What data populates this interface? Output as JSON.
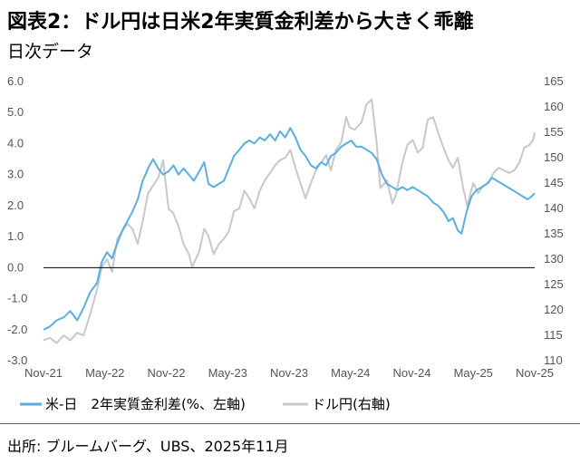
{
  "title": "図表2：ドル円は日米2年実質金利差から大きく乖離",
  "subtitle": "日次データ",
  "source": "出所: ブルームバーグ、UBS、2025年11月",
  "colors": {
    "spread": "#5aaee0",
    "usdjpy": "#c8c8c8",
    "zero_line": "#000000"
  },
  "chart_data": {
    "type": "line",
    "x_tick_labels": [
      "Nov-21",
      "May-22",
      "Nov-22",
      "May-23",
      "Nov-23",
      "May-24",
      "Nov-24",
      "May-25",
      "Nov-25"
    ],
    "left_axis": {
      "ylim": [
        -3.0,
        6.0
      ],
      "ticks": [
        "6.0",
        "5.0",
        "4.0",
        "3.0",
        "2.0",
        "1.0",
        "0.0",
        "-1.0",
        "-2.0",
        "-3.0"
      ]
    },
    "right_axis": {
      "ylim": [
        110,
        165
      ],
      "ticks": [
        "165",
        "160",
        "155",
        "150",
        "145",
        "140",
        "135",
        "130",
        "125",
        "120",
        "115",
        "110"
      ]
    },
    "grid": false,
    "legend_position": "bottom",
    "series": [
      {
        "name": "米-日　2年実質金利差(%、左軸)",
        "axis": "left",
        "points": [
          [
            "2021-11-01",
            -2.0
          ],
          [
            "2021-11-20",
            -1.9
          ],
          [
            "2021-12-10",
            -1.7
          ],
          [
            "2022-01-01",
            -1.6
          ],
          [
            "2022-01-20",
            -1.4
          ],
          [
            "2022-02-10",
            -1.7
          ],
          [
            "2022-03-01",
            -1.3
          ],
          [
            "2022-03-20",
            -0.8
          ],
          [
            "2022-04-10",
            -0.5
          ],
          [
            "2022-04-25",
            0.2
          ],
          [
            "2022-05-10",
            0.5
          ],
          [
            "2022-05-25",
            0.3
          ],
          [
            "2022-06-10",
            0.8
          ],
          [
            "2022-06-25",
            1.2
          ],
          [
            "2022-07-10",
            1.5
          ],
          [
            "2022-07-25",
            1.8
          ],
          [
            "2022-08-10",
            2.2
          ],
          [
            "2022-08-25",
            2.8
          ],
          [
            "2022-09-10",
            3.2
          ],
          [
            "2022-09-25",
            3.5
          ],
          [
            "2022-10-10",
            3.2
          ],
          [
            "2022-10-25",
            3.0
          ],
          [
            "2022-11-10",
            3.1
          ],
          [
            "2022-11-25",
            3.3
          ],
          [
            "2022-12-10",
            3.0
          ],
          [
            "2022-12-25",
            3.2
          ],
          [
            "2023-01-10",
            3.0
          ],
          [
            "2023-01-25",
            2.8
          ],
          [
            "2023-02-10",
            3.1
          ],
          [
            "2023-02-25",
            3.4
          ],
          [
            "2023-03-10",
            2.7
          ],
          [
            "2023-03-25",
            2.6
          ],
          [
            "2023-04-10",
            2.7
          ],
          [
            "2023-04-25",
            2.8
          ],
          [
            "2023-05-10",
            3.2
          ],
          [
            "2023-05-25",
            3.6
          ],
          [
            "2023-06-10",
            3.8
          ],
          [
            "2023-06-25",
            4.0
          ],
          [
            "2023-07-10",
            4.1
          ],
          [
            "2023-07-25",
            4.0
          ],
          [
            "2023-08-10",
            4.2
          ],
          [
            "2023-08-25",
            4.1
          ],
          [
            "2023-09-10",
            4.3
          ],
          [
            "2023-09-25",
            4.1
          ],
          [
            "2023-10-10",
            4.4
          ],
          [
            "2023-10-25",
            4.2
          ],
          [
            "2023-11-10",
            4.5
          ],
          [
            "2023-11-25",
            4.2
          ],
          [
            "2023-12-10",
            3.8
          ],
          [
            "2023-12-25",
            3.6
          ],
          [
            "2024-01-10",
            3.3
          ],
          [
            "2024-01-25",
            3.2
          ],
          [
            "2024-02-10",
            3.4
          ],
          [
            "2024-02-25",
            3.3
          ],
          [
            "2024-03-10",
            3.6
          ],
          [
            "2024-03-25",
            3.7
          ],
          [
            "2024-04-10",
            3.9
          ],
          [
            "2024-04-25",
            4.0
          ],
          [
            "2024-05-10",
            4.1
          ],
          [
            "2024-05-25",
            3.9
          ],
          [
            "2024-06-10",
            3.9
          ],
          [
            "2024-06-25",
            3.8
          ],
          [
            "2024-07-10",
            3.7
          ],
          [
            "2024-07-25",
            3.5
          ],
          [
            "2024-08-10",
            3.0
          ],
          [
            "2024-08-25",
            2.7
          ],
          [
            "2024-09-10",
            2.6
          ],
          [
            "2024-09-25",
            2.5
          ],
          [
            "2024-10-10",
            2.6
          ],
          [
            "2024-10-25",
            2.5
          ],
          [
            "2024-11-10",
            2.6
          ],
          [
            "2024-11-25",
            2.5
          ],
          [
            "2024-12-10",
            2.4
          ],
          [
            "2024-12-25",
            2.3
          ],
          [
            "2025-01-10",
            2.1
          ],
          [
            "2025-01-25",
            2.0
          ],
          [
            "2025-02-10",
            1.8
          ],
          [
            "2025-02-25",
            1.5
          ],
          [
            "2025-03-10",
            1.6
          ],
          [
            "2025-03-25",
            1.2
          ],
          [
            "2025-04-05",
            1.1
          ],
          [
            "2025-04-20",
            1.8
          ],
          [
            "2025-05-05",
            2.3
          ],
          [
            "2025-05-20",
            2.5
          ],
          [
            "2025-06-05",
            2.6
          ],
          [
            "2025-06-20",
            2.7
          ],
          [
            "2025-07-05",
            2.9
          ],
          [
            "2025-07-20",
            2.8
          ],
          [
            "2025-08-05",
            2.7
          ],
          [
            "2025-08-20",
            2.6
          ],
          [
            "2025-09-05",
            2.5
          ],
          [
            "2025-09-20",
            2.4
          ],
          [
            "2025-10-05",
            2.3
          ],
          [
            "2025-10-20",
            2.2
          ],
          [
            "2025-11-01",
            2.3
          ],
          [
            "2025-11-10",
            2.4
          ]
        ]
      },
      {
        "name": "ドル円(右軸)",
        "axis": "right",
        "points": [
          [
            "2021-11-01",
            114.0
          ],
          [
            "2021-11-20",
            114.5
          ],
          [
            "2021-12-10",
            113.5
          ],
          [
            "2022-01-01",
            115.0
          ],
          [
            "2022-01-20",
            114.0
          ],
          [
            "2022-02-10",
            115.5
          ],
          [
            "2022-03-01",
            115.0
          ],
          [
            "2022-03-20",
            119.0
          ],
          [
            "2022-04-10",
            124.0
          ],
          [
            "2022-04-25",
            128.5
          ],
          [
            "2022-05-10",
            130.0
          ],
          [
            "2022-05-25",
            127.5
          ],
          [
            "2022-06-10",
            134.0
          ],
          [
            "2022-06-25",
            135.5
          ],
          [
            "2022-07-10",
            137.0
          ],
          [
            "2022-07-25",
            136.0
          ],
          [
            "2022-08-10",
            133.0
          ],
          [
            "2022-08-25",
            137.5
          ],
          [
            "2022-09-10",
            143.0
          ],
          [
            "2022-09-25",
            144.5
          ],
          [
            "2022-10-10",
            146.0
          ],
          [
            "2022-10-25",
            149.5
          ],
          [
            "2022-11-10",
            140.0
          ],
          [
            "2022-11-25",
            139.0
          ],
          [
            "2022-12-10",
            136.5
          ],
          [
            "2022-12-25",
            133.0
          ],
          [
            "2023-01-10",
            131.0
          ],
          [
            "2023-01-20",
            128.5
          ],
          [
            "2023-02-10",
            131.5
          ],
          [
            "2023-02-25",
            136.0
          ],
          [
            "2023-03-10",
            134.5
          ],
          [
            "2023-03-25",
            131.0
          ],
          [
            "2023-04-10",
            133.0
          ],
          [
            "2023-04-25",
            134.0
          ],
          [
            "2023-05-10",
            135.5
          ],
          [
            "2023-05-25",
            139.5
          ],
          [
            "2023-06-10",
            140.0
          ],
          [
            "2023-06-25",
            143.5
          ],
          [
            "2023-07-10",
            142.0
          ],
          [
            "2023-07-25",
            140.0
          ],
          [
            "2023-08-10",
            143.5
          ],
          [
            "2023-08-25",
            145.5
          ],
          [
            "2023-09-10",
            147.0
          ],
          [
            "2023-09-25",
            148.5
          ],
          [
            "2023-10-10",
            149.5
          ],
          [
            "2023-10-25",
            150.0
          ],
          [
            "2023-11-10",
            151.5
          ],
          [
            "2023-11-25",
            148.0
          ],
          [
            "2023-12-10",
            145.0
          ],
          [
            "2023-12-25",
            142.0
          ],
          [
            "2024-01-10",
            145.0
          ],
          [
            "2024-01-25",
            147.5
          ],
          [
            "2024-02-10",
            149.0
          ],
          [
            "2024-02-25",
            150.5
          ],
          [
            "2024-03-10",
            147.5
          ],
          [
            "2024-03-25",
            151.5
          ],
          [
            "2024-04-10",
            153.0
          ],
          [
            "2024-04-25",
            158.0
          ],
          [
            "2024-05-05",
            156.0
          ],
          [
            "2024-05-20",
            155.5
          ],
          [
            "2024-06-10",
            157.0
          ],
          [
            "2024-06-25",
            160.5
          ],
          [
            "2024-07-10",
            161.5
          ],
          [
            "2024-07-25",
            153.0
          ],
          [
            "2024-08-05",
            144.0
          ],
          [
            "2024-08-25",
            145.5
          ],
          [
            "2024-09-10",
            141.0
          ],
          [
            "2024-09-20",
            142.5
          ],
          [
            "2024-10-10",
            149.0
          ],
          [
            "2024-10-25",
            152.5
          ],
          [
            "2024-11-10",
            153.5
          ],
          [
            "2024-11-25",
            151.0
          ],
          [
            "2024-12-10",
            152.0
          ],
          [
            "2024-12-25",
            157.5
          ],
          [
            "2025-01-10",
            158.0
          ],
          [
            "2025-01-25",
            155.0
          ],
          [
            "2025-02-10",
            152.0
          ],
          [
            "2025-02-25",
            149.5
          ],
          [
            "2025-03-10",
            148.0
          ],
          [
            "2025-03-25",
            150.0
          ],
          [
            "2025-04-10",
            144.0
          ],
          [
            "2025-04-22",
            140.5
          ],
          [
            "2025-05-10",
            145.0
          ],
          [
            "2025-05-25",
            143.0
          ],
          [
            "2025-06-10",
            144.5
          ],
          [
            "2025-06-25",
            145.0
          ],
          [
            "2025-07-10",
            147.0
          ],
          [
            "2025-07-25",
            148.0
          ],
          [
            "2025-08-10",
            147.5
          ],
          [
            "2025-08-25",
            147.0
          ],
          [
            "2025-09-10",
            147.5
          ],
          [
            "2025-09-25",
            149.0
          ],
          [
            "2025-10-10",
            152.0
          ],
          [
            "2025-10-25",
            152.5
          ],
          [
            "2025-11-05",
            153.5
          ],
          [
            "2025-11-10",
            155.0
          ]
        ]
      }
    ]
  }
}
